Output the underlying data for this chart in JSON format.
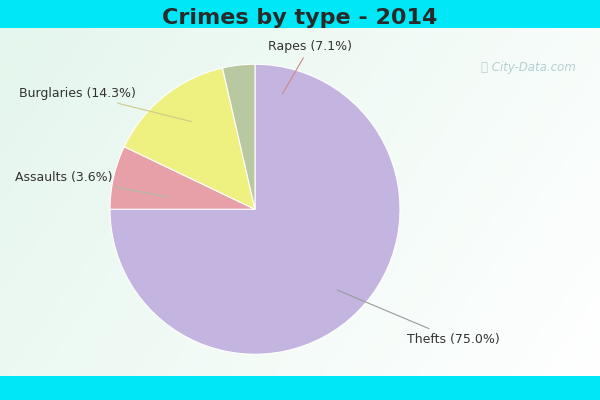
{
  "title": "Crimes by type - 2014",
  "slices": [
    {
      "label": "Thefts (75.0%)",
      "value": 75.0,
      "color": "#c4b4e0"
    },
    {
      "label": "Rapes (7.1%)",
      "value": 7.1,
      "color": "#e8a0a8"
    },
    {
      "label": "Burglaries (14.3%)",
      "value": 14.3,
      "color": "#eef080"
    },
    {
      "label": "Assaults (3.6%)",
      "value": 3.6,
      "color": "#b8c8a0"
    }
  ],
  "background_cyan": "#00e8f8",
  "title_fontsize": 16,
  "label_fontsize": 9,
  "watermark": "ⓘ City-Data.com",
  "title_color": "#2a2a2a"
}
